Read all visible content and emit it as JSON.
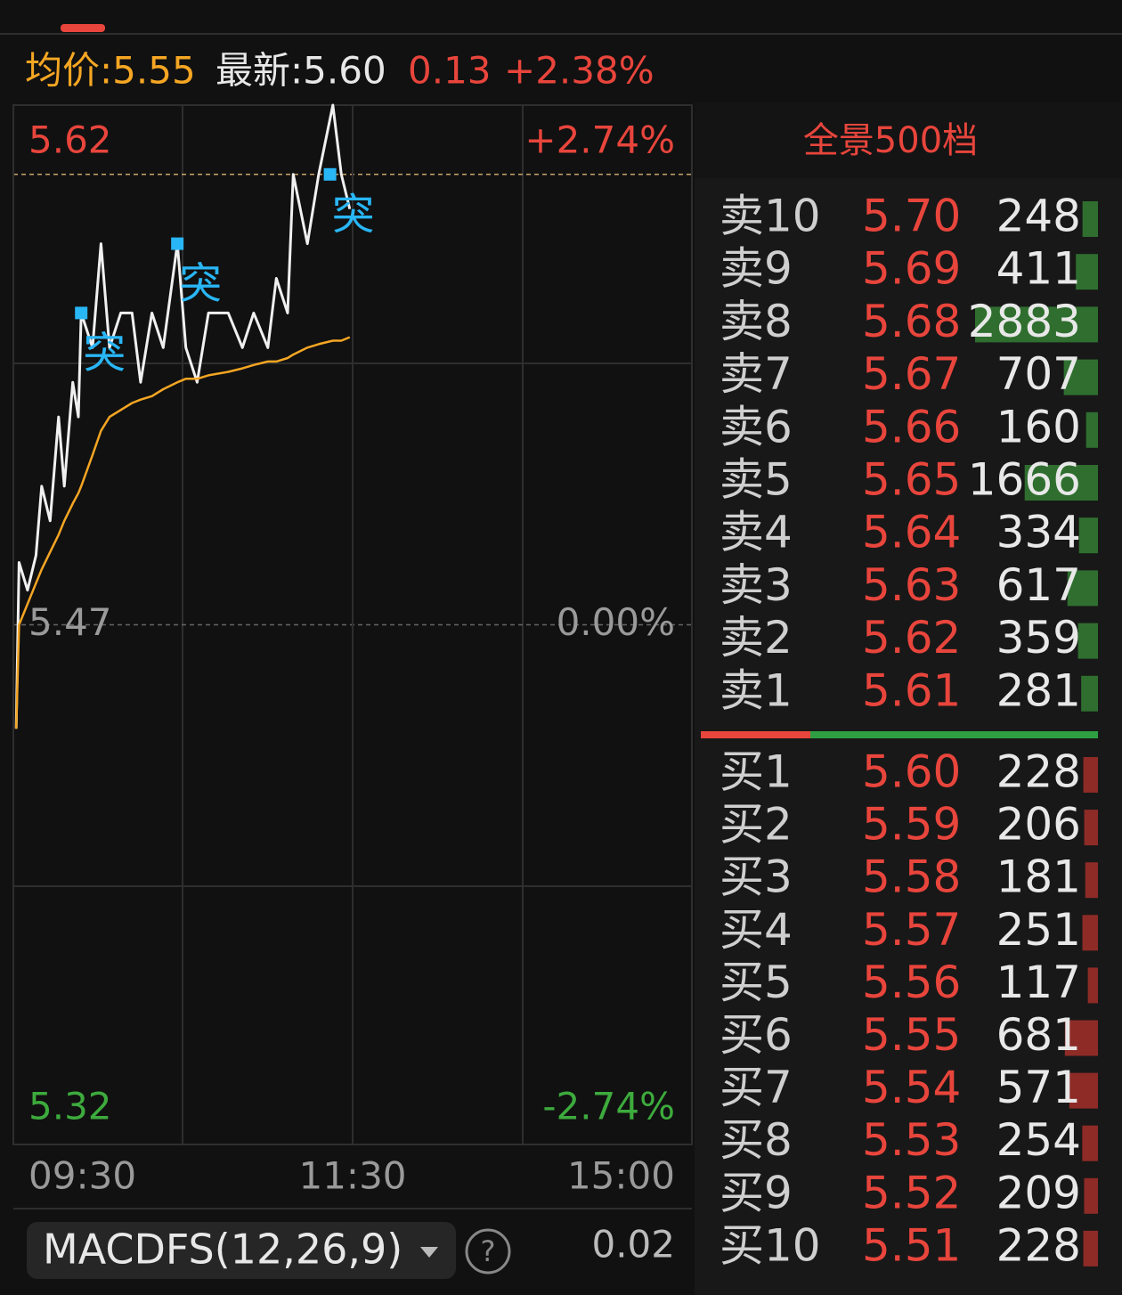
{
  "header": {
    "avg_label": "均价:5.55",
    "latest_label": "最新:5.60",
    "change": "0.13",
    "change_pct": "+2.38%"
  },
  "chart_data": {
    "type": "line",
    "x": [
      1,
      2,
      5,
      8,
      10,
      13,
      16,
      18,
      21,
      23,
      24,
      28,
      31,
      34,
      38,
      42,
      45,
      49,
      53,
      58,
      61,
      65,
      69,
      76,
      81,
      85,
      90,
      93,
      97,
      99,
      104,
      108,
      113,
      116,
      119
    ],
    "series": [
      {
        "color": "#f0f0f0",
        "values": [
          5.44,
          5.488,
          5.48,
          5.49,
          5.51,
          5.5,
          5.53,
          5.51,
          5.54,
          5.53,
          5.56,
          5.55,
          5.58,
          5.55,
          5.56,
          5.56,
          5.54,
          5.56,
          5.55,
          5.58,
          5.55,
          5.54,
          5.56,
          5.56,
          5.55,
          5.56,
          5.55,
          5.57,
          5.56,
          5.6,
          5.58,
          5.6,
          5.62,
          5.6,
          5.59
        ]
      },
      {
        "color": "#f5a623",
        "values": [
          5.44,
          5.47,
          5.476,
          5.482,
          5.486,
          5.491,
          5.496,
          5.5,
          5.505,
          5.508,
          5.51,
          5.519,
          5.526,
          5.53,
          5.532,
          5.534,
          5.535,
          5.536,
          5.538,
          5.54,
          5.541,
          5.541,
          5.542,
          5.543,
          5.544,
          5.545,
          5.546,
          5.546,
          5.547,
          5.548,
          5.55,
          5.551,
          5.552,
          5.552,
          5.553
        ]
      }
    ],
    "xlim": [
      0,
      240
    ],
    "xticks": [
      {
        "value": 0,
        "label": "09:30"
      },
      {
        "value": 120,
        "label": "11:30"
      },
      {
        "value": 240,
        "label": "15:00"
      }
    ],
    "ylim": [
      5.32,
      5.62
    ],
    "yticks": [
      5.62,
      5.47,
      5.32
    ],
    "y2lim": [
      -2.74,
      2.74
    ],
    "y2ticks": [
      {
        "value": 2.74,
        "label": "+2.74%"
      },
      {
        "value": 0,
        "label": "0.00%"
      },
      {
        "value": -2.74,
        "label": "-2.74%"
      }
    ],
    "latest_line": 5.6,
    "signals": [
      {
        "label": "突",
        "x": 24,
        "y": 5.56
      },
      {
        "label": "突",
        "x": 58,
        "y": 5.58
      },
      {
        "label": "突",
        "x": 112,
        "y": 5.6
      }
    ]
  },
  "order_book": {
    "title": "全景500档",
    "asks": [
      {
        "label": "卖10",
        "price": "5.70",
        "volume": 248
      },
      {
        "label": "卖9",
        "price": "5.69",
        "volume": 411
      },
      {
        "label": "卖8",
        "price": "5.68",
        "volume": 2883
      },
      {
        "label": "卖7",
        "price": "5.67",
        "volume": 707
      },
      {
        "label": "卖6",
        "price": "5.66",
        "volume": 160
      },
      {
        "label": "卖5",
        "price": "5.65",
        "volume": 1666
      },
      {
        "label": "卖4",
        "price": "5.64",
        "volume": 334
      },
      {
        "label": "卖3",
        "price": "5.63",
        "volume": 617
      },
      {
        "label": "卖2",
        "price": "5.62",
        "volume": 359
      },
      {
        "label": "卖1",
        "price": "5.61",
        "volume": 281
      }
    ],
    "bids": [
      {
        "label": "买1",
        "price": "5.60",
        "volume": 228
      },
      {
        "label": "买2",
        "price": "5.59",
        "volume": 206
      },
      {
        "label": "买3",
        "price": "5.58",
        "volume": 181
      },
      {
        "label": "买4",
        "price": "5.57",
        "volume": 251
      },
      {
        "label": "买5",
        "price": "5.56",
        "volume": 117
      },
      {
        "label": "买6",
        "price": "5.55",
        "volume": 681
      },
      {
        "label": "买7",
        "price": "5.54",
        "volume": 571
      },
      {
        "label": "买8",
        "price": "5.53",
        "volume": 254
      },
      {
        "label": "买9",
        "price": "5.52",
        "volume": 209
      },
      {
        "label": "买10",
        "price": "5.51",
        "volume": 228
      }
    ]
  },
  "indicator": {
    "name": "MACDFS(12,26,9)",
    "help": "?",
    "value": "0.02"
  }
}
